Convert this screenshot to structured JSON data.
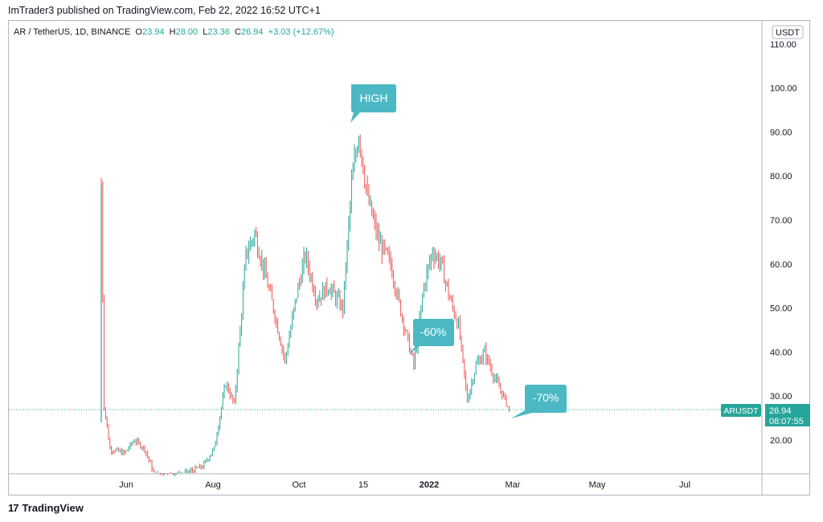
{
  "header": {
    "text": "ImTrader3 published on TradingView.com, Feb 22, 2022 16:52 UTC+1"
  },
  "symbol": {
    "pair": "AR / TetherUS, 1D, BINANCE",
    "o_label": "O",
    "o": "23.94",
    "h_label": "H",
    "h": "28.00",
    "l_label": "L",
    "l": "23.36",
    "c_label": "C",
    "c": "26.94",
    "change": "+3.03 (+12.67%)"
  },
  "currency_badge": "USDT",
  "price_tag": {
    "symbol": "ARUSDT",
    "price": "26.94",
    "countdown": "08:07:55"
  },
  "annotations": {
    "high": "HIGH",
    "drop60": "-60%",
    "drop70": "-70%"
  },
  "footer": {
    "brand": "TradingView",
    "logo": "17"
  },
  "colors": {
    "up": "#26a69a",
    "down": "#ef5350",
    "callout": "#4cb8c4"
  },
  "chart_data": {
    "type": "candlestick",
    "series": "AR / TetherUS daily",
    "y_ticks": [
      "110.00",
      "100.00",
      "90.00",
      "80.00",
      "70.00",
      "60.00",
      "50.00",
      "40.00",
      "30.00",
      "20.00"
    ],
    "x_ticks": [
      "Jun",
      "Aug",
      "Oct",
      "15",
      "2022",
      "Mar",
      "May",
      "Jul"
    ],
    "ylim": [
      12,
      115
    ],
    "last_price": 26.94,
    "points": [
      {
        "d": "2021-05-16",
        "p": 78
      },
      {
        "d": "2021-05-18",
        "p": 28
      },
      {
        "d": "2021-05-22",
        "p": 18
      },
      {
        "d": "2021-06-01",
        "p": 17
      },
      {
        "d": "2021-06-08",
        "p": 20
      },
      {
        "d": "2021-06-15",
        "p": 18
      },
      {
        "d": "2021-06-22",
        "p": 12
      },
      {
        "d": "2021-07-10",
        "p": 12
      },
      {
        "d": "2021-07-25",
        "p": 14
      },
      {
        "d": "2021-08-02",
        "p": 18
      },
      {
        "d": "2021-08-10",
        "p": 33
      },
      {
        "d": "2021-08-16",
        "p": 28
      },
      {
        "d": "2021-08-24",
        "p": 62
      },
      {
        "d": "2021-08-30",
        "p": 67
      },
      {
        "d": "2021-09-06",
        "p": 58
      },
      {
        "d": "2021-09-12",
        "p": 50
      },
      {
        "d": "2021-09-20",
        "p": 38
      },
      {
        "d": "2021-09-28",
        "p": 53
      },
      {
        "d": "2021-10-04",
        "p": 62
      },
      {
        "d": "2021-10-12",
        "p": 52
      },
      {
        "d": "2021-10-20",
        "p": 55
      },
      {
        "d": "2021-10-30",
        "p": 50
      },
      {
        "d": "2021-11-05",
        "p": 78
      },
      {
        "d": "2021-11-10",
        "p": 90
      },
      {
        "d": "2021-11-16",
        "p": 75
      },
      {
        "d": "2021-11-24",
        "p": 65
      },
      {
        "d": "2021-12-02",
        "p": 60
      },
      {
        "d": "2021-12-10",
        "p": 48
      },
      {
        "d": "2021-12-18",
        "p": 37
      },
      {
        "d": "2021-12-25",
        "p": 55
      },
      {
        "d": "2021-12-31",
        "p": 63
      },
      {
        "d": "2022-01-06",
        "p": 60
      },
      {
        "d": "2022-01-12",
        "p": 52
      },
      {
        "d": "2022-01-18",
        "p": 46
      },
      {
        "d": "2022-01-24",
        "p": 29
      },
      {
        "d": "2022-01-30",
        "p": 37
      },
      {
        "d": "2022-02-05",
        "p": 40
      },
      {
        "d": "2022-02-12",
        "p": 34
      },
      {
        "d": "2022-02-18",
        "p": 30
      },
      {
        "d": "2022-02-22",
        "p": 26.94
      }
    ]
  }
}
